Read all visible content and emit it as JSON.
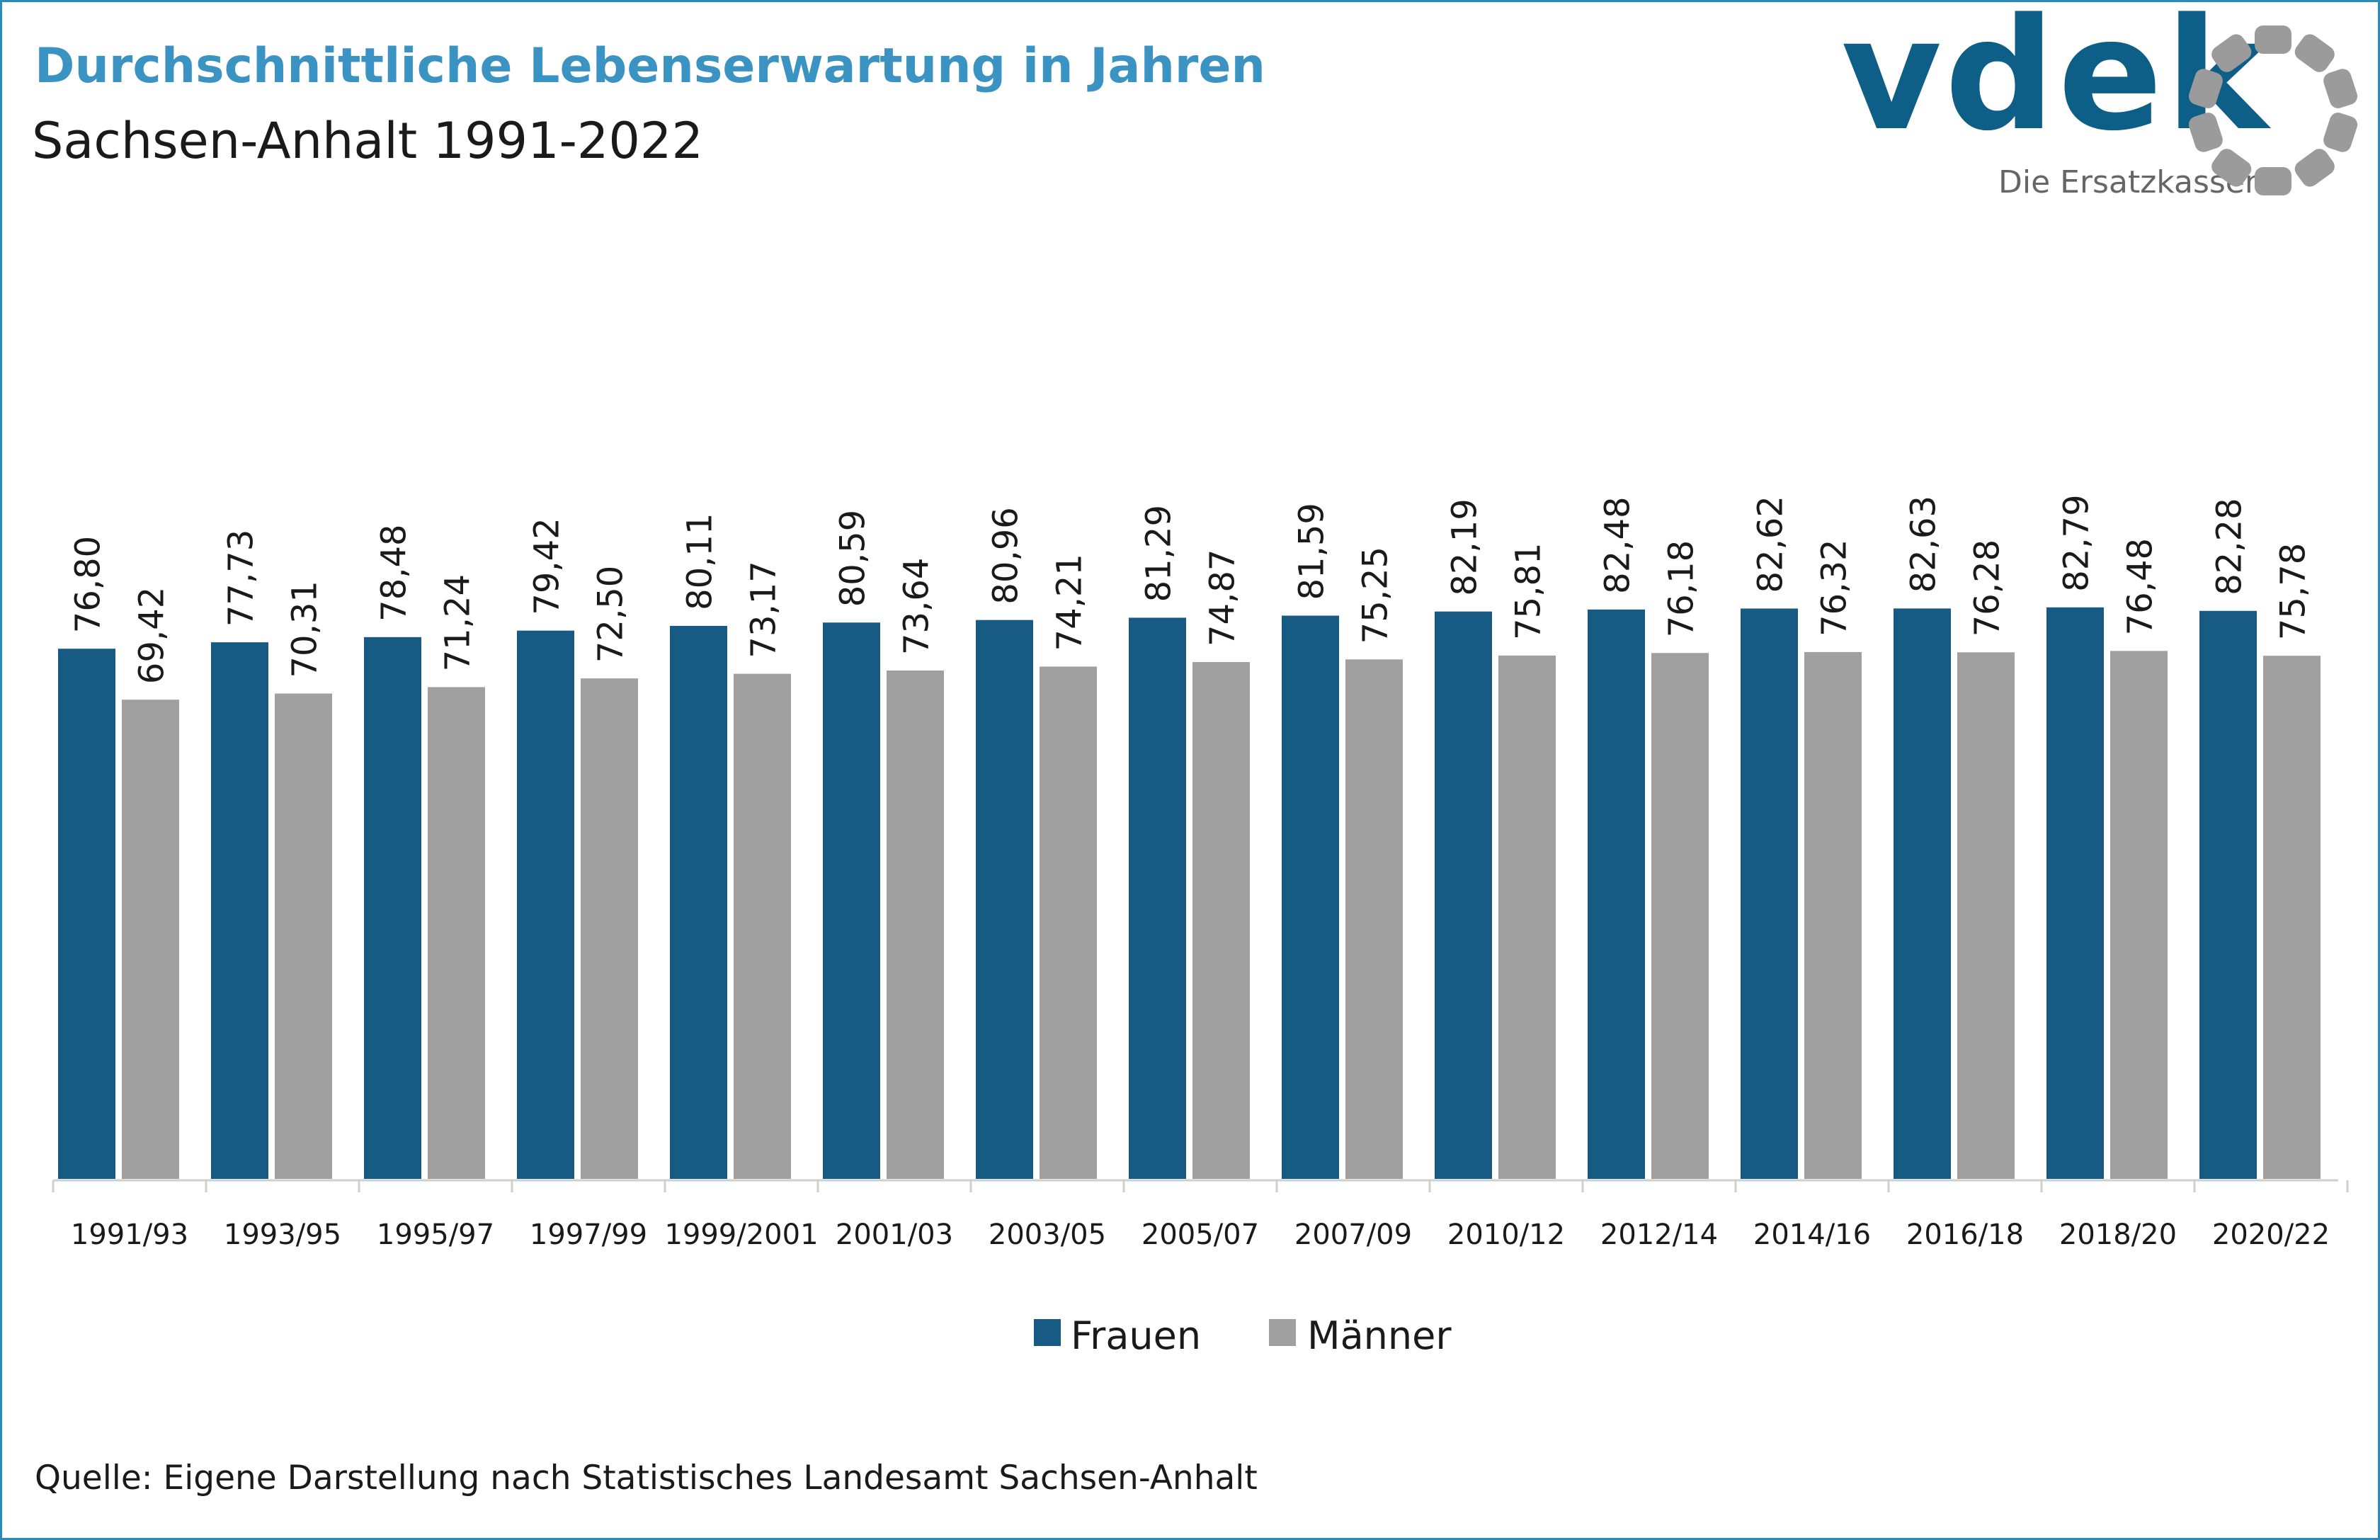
{
  "header": {
    "title": "Durchschnittliche Lebenserwartung in Jahren",
    "subtitle": "Sachsen-Anhalt 1991-2022"
  },
  "logo": {
    "word": "vdek",
    "tagline": "Die Ersatzkassen",
    "ring_icon": "vdek-ring-icon"
  },
  "colors": {
    "frauen": "#175b84",
    "maenner": "#a0a0a0",
    "frame": "#2b8ab8",
    "title": "#3a93c2",
    "logo": "#0e5f88",
    "logo_ring": "#9b9b9b"
  },
  "legend": {
    "position": "bottom-center",
    "items": [
      {
        "label": "Frauen"
      },
      {
        "label": "Männer"
      }
    ]
  },
  "source": "Quelle: Eigene Darstellung nach Statistisches Landesamt Sachsen-Anhalt",
  "chart_data": {
    "type": "bar",
    "title": "Durchschnittliche Lebenserwartung in Jahren",
    "subtitle": "Sachsen-Anhalt 1991-2022",
    "xlabel": "",
    "ylabel": "",
    "ylim": [
      0,
      90
    ],
    "grid": false,
    "legend_position": "bottom",
    "categories": [
      "1991/93",
      "1993/95",
      "1995/97",
      "1997/99",
      "1999/2001",
      "2001/03",
      "2003/05",
      "2005/07",
      "2007/09",
      "2010/12",
      "2012/14",
      "2014/16",
      "2016/18",
      "2018/20",
      "2020/22"
    ],
    "series": [
      {
        "name": "Frauen",
        "color": "#175b84",
        "values": [
          76.8,
          77.73,
          78.48,
          79.42,
          80.11,
          80.59,
          80.96,
          81.29,
          81.59,
          82.19,
          82.48,
          82.62,
          82.63,
          82.79,
          82.28
        ],
        "labels": [
          "76,80",
          "77,73",
          "78,48",
          "79,42",
          "80,11",
          "80,59",
          "80,96",
          "81,29",
          "81,59",
          "82,19",
          "82,48",
          "82,62",
          "82,63",
          "82,79",
          "82,28"
        ]
      },
      {
        "name": "Männer",
        "color": "#a0a0a0",
        "values": [
          69.42,
          70.31,
          71.24,
          72.5,
          73.17,
          73.64,
          74.21,
          74.87,
          75.25,
          75.81,
          76.18,
          76.32,
          76.28,
          76.48,
          75.78
        ],
        "labels": [
          "69,42",
          "70,31",
          "71,24",
          "72,50",
          "73,17",
          "73,64",
          "74,21",
          "74,87",
          "75,25",
          "75,81",
          "76,18",
          "76,32",
          "76,28",
          "76,48",
          "75,78"
        ]
      }
    ]
  }
}
